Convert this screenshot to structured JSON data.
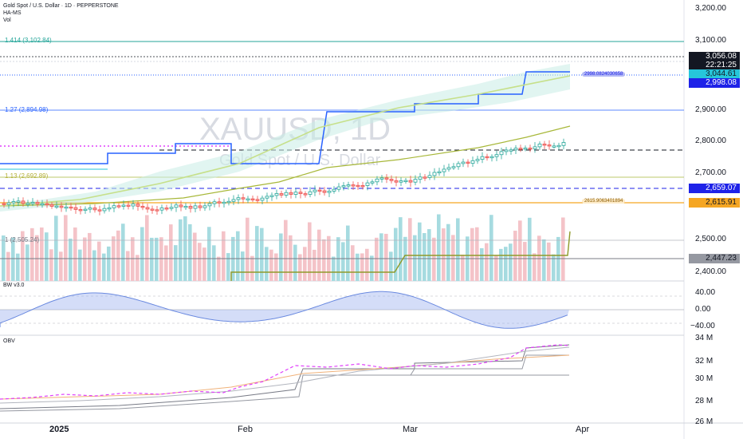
{
  "header": {
    "title": "Gold Spot / U.S. Dollar · 1D · PEPPERSTONE",
    "indicator_1": "HA-MS",
    "indicator_2": "Vol"
  },
  "watermark": {
    "symbol": "XAUUSD, 1D",
    "name": "Gold Spot / U.S. Dollar"
  },
  "fib_levels": [
    {
      "label": "1.414 (3,102.84)",
      "color": "#26a69a"
    },
    {
      "label": "1.27 (2,894.98)",
      "color": "#2962ff"
    },
    {
      "label": "1.13 (2,692.89)",
      "color": "#b5b03a"
    },
    {
      "label": "1 (2,505.24)",
      "color": "#787b86"
    }
  ],
  "price_axis": {
    "ticks": [
      "3,200.00",
      "3,100.00",
      "2,900.00",
      "2,800.00",
      "2,700.00",
      "2,500.00",
      "2,400.00"
    ],
    "tags": [
      {
        "value": "3,056.08",
        "bg": "#131722",
        "fg": "#ffffff"
      },
      {
        "value": "22:21:25",
        "bg": "#131722",
        "fg": "#ffffff"
      },
      {
        "value": "3,044.61",
        "bg": "#26c6da",
        "fg": "#131722"
      },
      {
        "value": "2,998.08",
        "bg": "#1e22e8",
        "fg": "#ffffff"
      },
      {
        "value": "2,659.07",
        "bg": "#1e22e8",
        "fg": "#ffffff"
      },
      {
        "value": "2,615.91",
        "bg": "#f5a623",
        "fg": "#131722"
      },
      {
        "value": "2,447.23",
        "bg": "#9598a1",
        "fg": "#131722"
      }
    ],
    "inline_tags": [
      {
        "value": "2998.0824030658",
        "bg": "#b2b8f5",
        "fg": "#1e22e8"
      },
      {
        "value": "2615.9063401894",
        "bg": "#fdebc8",
        "fg": "#8a5a00"
      }
    ]
  },
  "bw_pane": {
    "name": "BW v3.0",
    "ticks": [
      "40.00",
      "0.00",
      "−40.00"
    ]
  },
  "obv_pane": {
    "name": "OBV",
    "ticks": [
      "34 M",
      "32 M",
      "30 M",
      "28 M",
      "26 M"
    ]
  },
  "time_axis": {
    "labels": [
      "2025",
      "Feb",
      "Mar",
      "Apr"
    ]
  },
  "colors": {
    "up": "#26a69a",
    "down": "#ef5350",
    "volume_up": "#a6dbe0",
    "volume_down": "#f4c3c8",
    "trend_blue": "#2962ff",
    "trend_olive": "#a8b83a",
    "magenta": "#e040fb"
  }
}
